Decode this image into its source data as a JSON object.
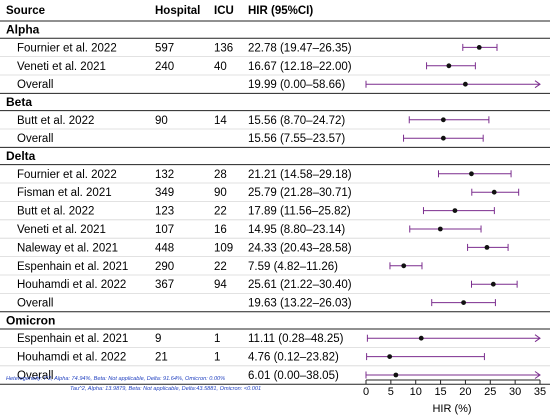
{
  "headers": {
    "source": "Source",
    "hospital": "Hospital",
    "icu": "ICU",
    "hir": "HIR (95%CI)"
  },
  "chart_data": {
    "type": "forest",
    "xlabel": "HIR (%)",
    "xlim": [
      0,
      35
    ],
    "xticks": [
      0,
      5,
      10,
      15,
      20,
      25,
      30,
      35
    ],
    "ci_color": "#7b2d8e",
    "point_color": "#111111",
    "groups": [
      {
        "name": "Alpha",
        "rows": [
          {
            "source": "Fournier et al. 2022",
            "hospital": "597",
            "icu": "136",
            "hir": "22.78 (19.47–26.35)",
            "est": 22.78,
            "lo": 19.47,
            "hi": 26.35,
            "arrow_right": false
          },
          {
            "source": "Veneti et al. 2021",
            "hospital": "240",
            "icu": "40",
            "hir": "16.67 (12.18–22.00)",
            "est": 16.67,
            "lo": 12.18,
            "hi": 22.0,
            "arrow_right": false
          },
          {
            "source": "Overall",
            "hospital": "",
            "icu": "",
            "hir": "19.99 (0.00–58.66)",
            "est": 19.99,
            "lo": 0.0,
            "hi": 58.66,
            "arrow_right": true
          }
        ]
      },
      {
        "name": "Beta",
        "rows": [
          {
            "source": "Butt et al. 2022",
            "hospital": "90",
            "icu": "14",
            "hir": "15.56 (8.70–24.72)",
            "est": 15.56,
            "lo": 8.7,
            "hi": 24.72,
            "arrow_right": false
          },
          {
            "source": "Overall",
            "hospital": "",
            "icu": "",
            "hir": "15.56 (7.55–23.57)",
            "est": 15.56,
            "lo": 7.55,
            "hi": 23.57,
            "arrow_right": false
          }
        ]
      },
      {
        "name": "Delta",
        "rows": [
          {
            "source": "Fournier et al. 2022",
            "hospital": "132",
            "icu": "28",
            "hir": "21.21 (14.58–29.18)",
            "est": 21.21,
            "lo": 14.58,
            "hi": 29.18,
            "arrow_right": false
          },
          {
            "source": "Fisman et al. 2021",
            "hospital": "349",
            "icu": "90",
            "hir": "25.79 (21.28–30.71)",
            "est": 25.79,
            "lo": 21.28,
            "hi": 30.71,
            "arrow_right": false
          },
          {
            "source": "Butt et al. 2022",
            "hospital": "123",
            "icu": "22",
            "hir": "17.89 (11.56–25.82)",
            "est": 17.89,
            "lo": 11.56,
            "hi": 25.82,
            "arrow_right": false
          },
          {
            "source": "Veneti et al. 2021",
            "hospital": "107",
            "icu": "16",
            "hir": "14.95 (8.80–23.14)",
            "est": 14.95,
            "lo": 8.8,
            "hi": 23.14,
            "arrow_right": false
          },
          {
            "source": "Naleway et al. 2021",
            "hospital": "448",
            "icu": "109",
            "hir": "24.33 (20.43–28.58)",
            "est": 24.33,
            "lo": 20.43,
            "hi": 28.58,
            "arrow_right": false
          },
          {
            "source": "Espenhain et al. 2021",
            "hospital": "290",
            "icu": "22",
            "hir": "7.59 (4.82–11.26)",
            "est": 7.59,
            "lo": 4.82,
            "hi": 11.26,
            "arrow_right": false
          },
          {
            "source": "Houhamdi et al. 2022",
            "hospital": "367",
            "icu": "94",
            "hir": "25.61 (21.22–30.40)",
            "est": 25.61,
            "lo": 21.22,
            "hi": 30.4,
            "arrow_right": false
          },
          {
            "source": "Overall",
            "hospital": "",
            "icu": "",
            "hir": "19.63 (13.22–26.03)",
            "est": 19.63,
            "lo": 13.22,
            "hi": 26.03,
            "arrow_right": false
          }
        ]
      },
      {
        "name": "Omicron",
        "rows": [
          {
            "source": "Espenhain et al. 2021",
            "hospital": "9",
            "icu": "1",
            "hir": "11.11 (0.28–48.25)",
            "est": 11.11,
            "lo": 0.28,
            "hi": 48.25,
            "arrow_right": true
          },
          {
            "source": "Houhamdi et al. 2022",
            "hospital": "21",
            "icu": "1",
            "hir": "4.76 (0.12–23.82)",
            "est": 4.76,
            "lo": 0.12,
            "hi": 23.82,
            "arrow_right": false
          },
          {
            "source": "Overall",
            "hospital": "",
            "icu": "",
            "hir": "6.01 (0.00–38.05)",
            "est": 6.01,
            "lo": 0.0,
            "hi": 38.05,
            "arrow_right": true
          }
        ]
      }
    ]
  },
  "footnotes": {
    "heterogeneity": "Heterogeneity: I^2, Alpha: 74.94%, Beta: Not applicable, Delta: 91.64%, Omicron: 0.00%",
    "tau": "Tau^2, Alpha: 13.9879, Beta: Not applicable, Delta:43.5881, Omicron: <0.001"
  }
}
